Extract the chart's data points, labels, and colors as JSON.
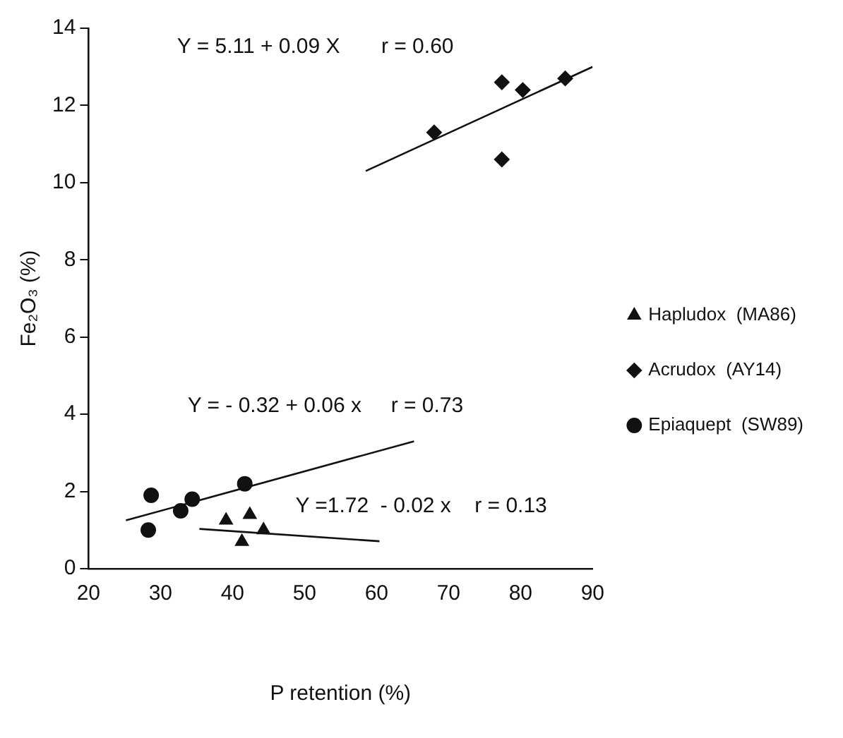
{
  "chart_data": {
    "type": "scatter",
    "xlabel": "P retention (%)",
    "ylabel": "Fe₂O₃ (%)",
    "xlim": [
      20,
      90
    ],
    "xticks": [
      20,
      30,
      40,
      50,
      60,
      70,
      80,
      90
    ],
    "ylim": [
      0,
      14
    ],
    "yticks": [
      0,
      2,
      4,
      6,
      8,
      10,
      12,
      14
    ],
    "grid": false,
    "legend": "right",
    "series": [
      {
        "name": "Hapludox  (MA86)",
        "color": "#111111",
        "marker": "triangle",
        "x": [
          39.1,
          41.3,
          42.4,
          44.3
        ],
        "values": [
          1.25,
          0.7,
          1.4,
          1.0
        ]
      },
      {
        "name": "Acrudox  (AY14)",
        "color": "#111111",
        "marker": "diamond",
        "x": [
          68,
          77.4,
          80.3,
          86.2,
          77.4
        ],
        "values": [
          11.3,
          12.6,
          12.4,
          12.7,
          10.6
        ]
      },
      {
        "name": "Epiaquept  (SW89)",
        "color": "#111111",
        "marker": "circle",
        "x": [
          28.7,
          28.3,
          32.8,
          34.4,
          41.7
        ],
        "values": [
          1.9,
          1.0,
          1.5,
          1.8,
          2.2
        ]
      },
      {
        "type": "line",
        "color": "#111111",
        "marker": "none",
        "x": [
          58.5,
          90
        ],
        "values": [
          10.3,
          13.0
        ]
      },
      {
        "type": "line",
        "color": "#111111",
        "marker": "none",
        "x": [
          25.2,
          65.2
        ],
        "values": [
          1.25,
          3.3
        ]
      },
      {
        "type": "line",
        "color": "#111111",
        "marker": "none",
        "x": [
          35.4,
          60.4
        ],
        "values": [
          1.03,
          0.71
        ]
      }
    ],
    "annotations": [
      "Y = 5.11 + 0.09 X       r = 0.60",
      "Y = - 0.32 + 0.06 x     r = 0.73",
      "Y =1.72  - 0.02 x    r = 0.13"
    ]
  }
}
